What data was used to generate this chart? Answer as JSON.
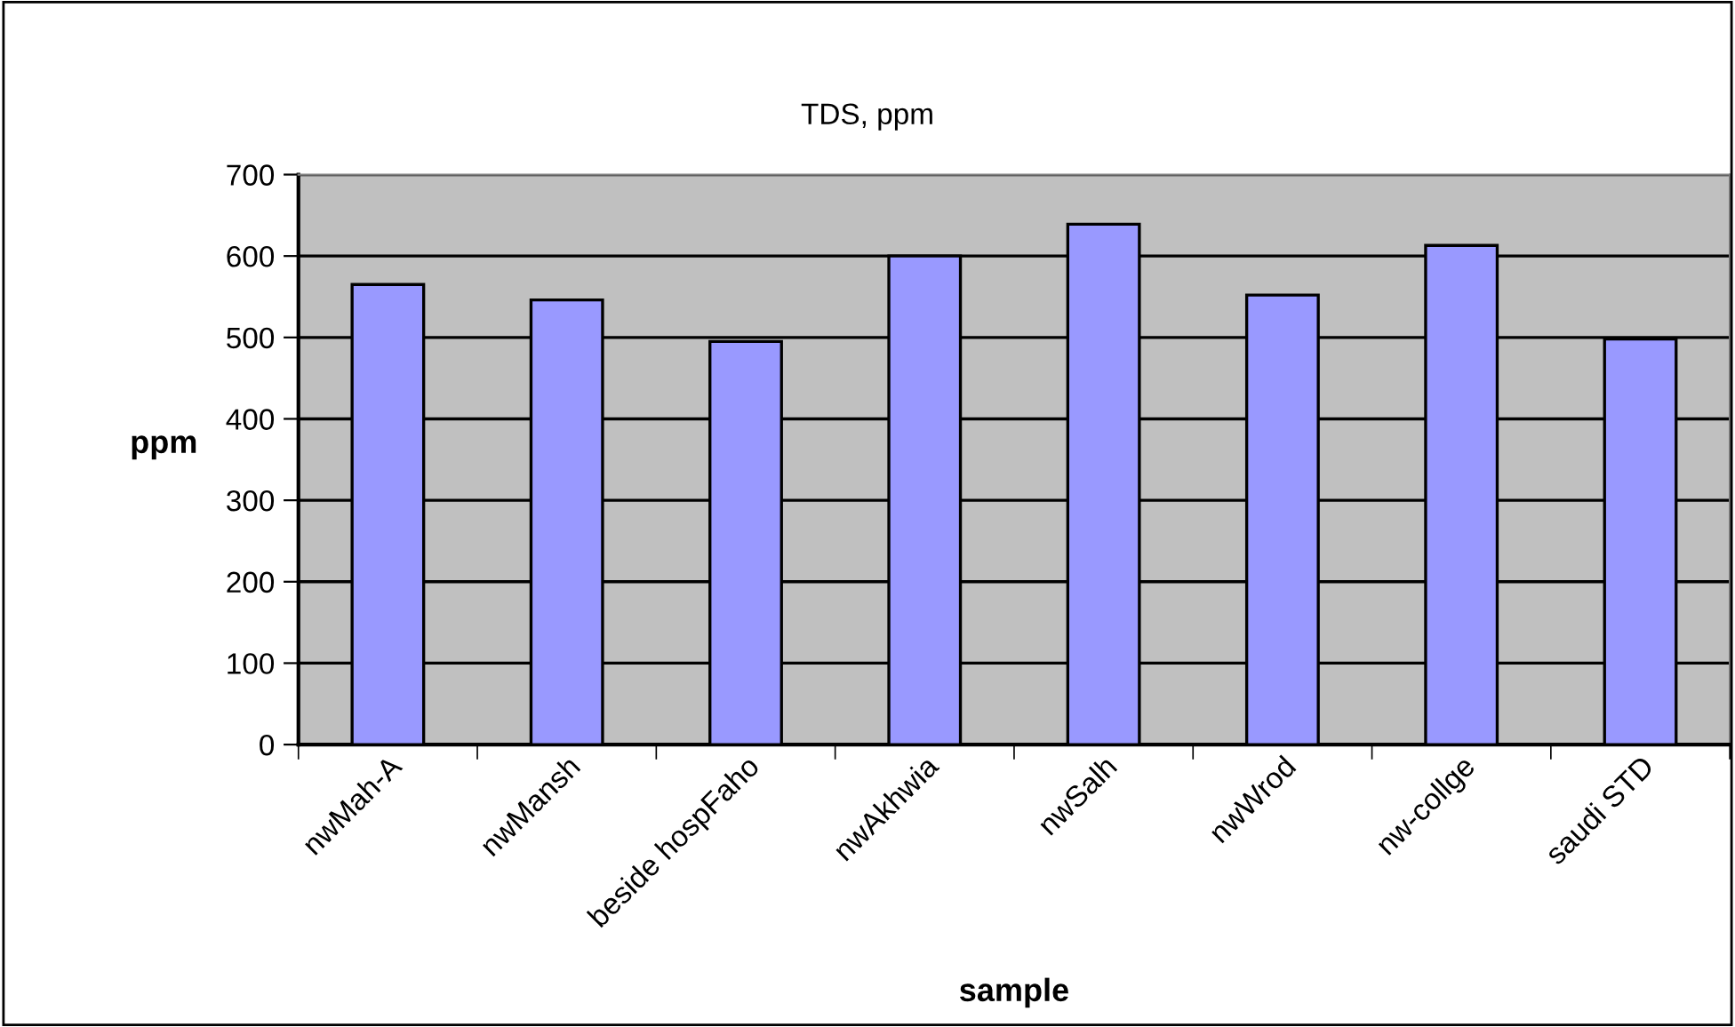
{
  "chart_data": {
    "type": "bar",
    "title": "TDS, ppm",
    "xlabel": "sample",
    "ylabel": "ppm",
    "categories": [
      "nwMah-A",
      "nwMansh",
      "beside hospFaho",
      "nwAkhwia",
      "nwSalh",
      "nwWrod",
      "nw-collge",
      "saudi STD"
    ],
    "values": [
      565,
      546,
      495,
      600,
      639,
      552,
      613,
      498
    ],
    "color": "#9999ff",
    "ylim": [
      0,
      700
    ],
    "yticks": [
      0,
      100,
      200,
      300,
      400,
      500,
      600,
      700
    ],
    "grid": "y"
  }
}
